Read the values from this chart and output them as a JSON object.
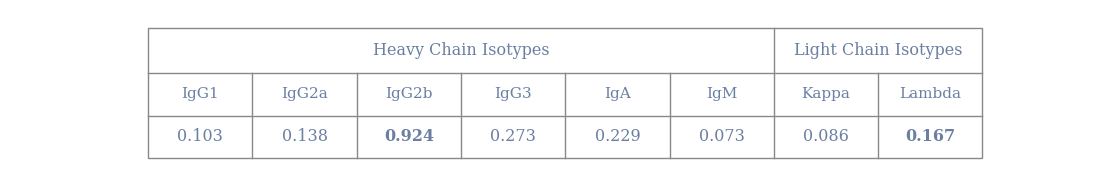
{
  "heavy_chain_label": "Heavy Chain Isotypes",
  "light_chain_label": "Light Chain Isotypes",
  "col_headers": [
    "IgG1",
    "IgG2a",
    "IgG2b",
    "IgG3",
    "IgA",
    "IgM",
    "Kappa",
    "Lambda"
  ],
  "values": [
    "0.103",
    "0.138",
    "0.924",
    "0.273",
    "0.229",
    "0.073",
    "0.086",
    "0.167"
  ],
  "bold_values": [
    2,
    7
  ],
  "bg_color": "#ffffff",
  "border_color": "#888888",
  "text_color": "#6b7fa3",
  "n_heavy": 6,
  "n_light": 2,
  "figsize": [
    11.03,
    1.84
  ],
  "dpi": 100,
  "font_family": "serif",
  "header_fontsize": 11.5,
  "cell_fontsize": 11.0,
  "value_fontsize": 11.5
}
